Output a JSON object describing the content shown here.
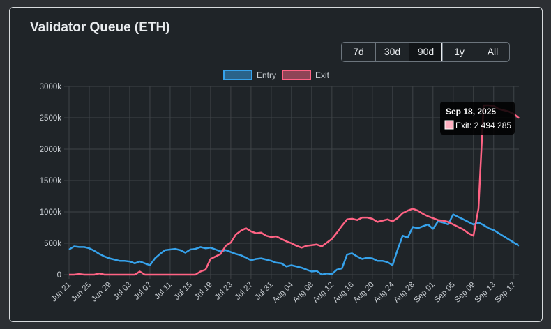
{
  "card": {
    "title": "Validator Queue (ETH)"
  },
  "range_buttons": [
    "7d",
    "30d",
    "90d",
    "1y",
    "All"
  ],
  "range_active": "90d",
  "tooltip": {
    "title": "Sep 18, 2025",
    "label": "Exit: 2 494 285"
  },
  "colors": {
    "entry": "#36a2eb",
    "exit": "#ff6384",
    "grid": "#3f4448",
    "text": "#c9ced3"
  },
  "chart_data": {
    "type": "line",
    "x": [
      "Jun 21",
      "Jun 22",
      "Jun 23",
      "Jun 24",
      "Jun 25",
      "Jun 26",
      "Jun 27",
      "Jun 28",
      "Jun 29",
      "Jun 30",
      "Jul 01",
      "Jul 02",
      "Jul 03",
      "Jul 04",
      "Jul 05",
      "Jul 06",
      "Jul 07",
      "Jul 08",
      "Jul 09",
      "Jul 10",
      "Jul 11",
      "Jul 12",
      "Jul 13",
      "Jul 14",
      "Jul 15",
      "Jul 16",
      "Jul 17",
      "Jul 18",
      "Jul 19",
      "Jul 20",
      "Jul 21",
      "Jul 22",
      "Jul 23",
      "Jul 24",
      "Jul 25",
      "Jul 26",
      "Jul 27",
      "Jul 28",
      "Jul 29",
      "Jul 30",
      "Jul 31",
      "Aug 01",
      "Aug 02",
      "Aug 03",
      "Aug 04",
      "Aug 05",
      "Aug 06",
      "Aug 07",
      "Aug 08",
      "Aug 09",
      "Aug 10",
      "Aug 11",
      "Aug 12",
      "Aug 13",
      "Aug 14",
      "Aug 15",
      "Aug 16",
      "Aug 17",
      "Aug 18",
      "Aug 19",
      "Aug 20",
      "Aug 21",
      "Aug 22",
      "Aug 23",
      "Aug 24",
      "Aug 25",
      "Aug 26",
      "Aug 27",
      "Aug 28",
      "Aug 29",
      "Aug 30",
      "Aug 31",
      "Sep 01",
      "Sep 02",
      "Sep 03",
      "Sep 04",
      "Sep 05",
      "Sep 06",
      "Sep 07",
      "Sep 08",
      "Sep 09",
      "Sep 10",
      "Sep 11",
      "Sep 12",
      "Sep 13",
      "Sep 14",
      "Sep 15",
      "Sep 16",
      "Sep 17",
      "Sep 18"
    ],
    "tick_labels": [
      "Jun 21",
      "Jun 25",
      "Jun 29",
      "Jul 03",
      "Jul 07",
      "Jul 11",
      "Jul 15",
      "Jul 19",
      "Jul 23",
      "Jul 27",
      "Jul 31",
      "Aug 04",
      "Aug 08",
      "Aug 12",
      "Aug 16",
      "Aug 20",
      "Aug 24",
      "Aug 28",
      "Sep 01",
      "Sep 05",
      "Sep 09",
      "Sep 13",
      "Sep 17"
    ],
    "y_ticks": [
      "0",
      "500k",
      "1000k",
      "1500k",
      "2000k",
      "2500k",
      "3000k"
    ],
    "ylim": [
      0,
      3000000
    ],
    "legend_position": "top",
    "grid": true,
    "series": [
      {
        "name": "Entry",
        "values": [
          400000,
          450000,
          440000,
          440000,
          420000,
          380000,
          330000,
          290000,
          260000,
          240000,
          220000,
          220000,
          210000,
          180000,
          210000,
          180000,
          150000,
          260000,
          330000,
          390000,
          400000,
          410000,
          390000,
          350000,
          400000,
          410000,
          440000,
          420000,
          430000,
          400000,
          370000,
          390000,
          360000,
          330000,
          310000,
          270000,
          230000,
          250000,
          260000,
          240000,
          220000,
          190000,
          180000,
          130000,
          150000,
          130000,
          110000,
          80000,
          50000,
          60000,
          0,
          20000,
          10000,
          80000,
          100000,
          320000,
          340000,
          290000,
          250000,
          270000,
          260000,
          220000,
          220000,
          200000,
          150000,
          400000,
          620000,
          590000,
          760000,
          740000,
          770000,
          800000,
          730000,
          850000,
          830000,
          800000,
          960000,
          920000,
          880000,
          840000,
          800000,
          830000,
          790000,
          740000,
          710000,
          660000,
          610000,
          560000,
          510000,
          460000
        ]
      },
      {
        "name": "Exit",
        "values": [
          0,
          0,
          10000,
          0,
          0,
          0,
          20000,
          0,
          0,
          0,
          0,
          0,
          0,
          0,
          50000,
          0,
          0,
          0,
          0,
          0,
          0,
          0,
          0,
          0,
          0,
          0,
          50000,
          80000,
          250000,
          290000,
          330000,
          460000,
          510000,
          640000,
          700000,
          740000,
          690000,
          660000,
          670000,
          620000,
          600000,
          610000,
          570000,
          530000,
          500000,
          460000,
          430000,
          460000,
          470000,
          480000,
          450000,
          510000,
          570000,
          670000,
          780000,
          880000,
          890000,
          870000,
          910000,
          910000,
          890000,
          840000,
          860000,
          880000,
          850000,
          900000,
          980000,
          1020000,
          1050000,
          1020000,
          970000,
          930000,
          900000,
          870000,
          860000,
          840000,
          800000,
          760000,
          720000,
          660000,
          620000,
          1050000,
          2700000,
          2700000,
          2690000,
          2640000,
          2620000,
          2600000,
          2560000,
          2494285
        ]
      }
    ]
  }
}
